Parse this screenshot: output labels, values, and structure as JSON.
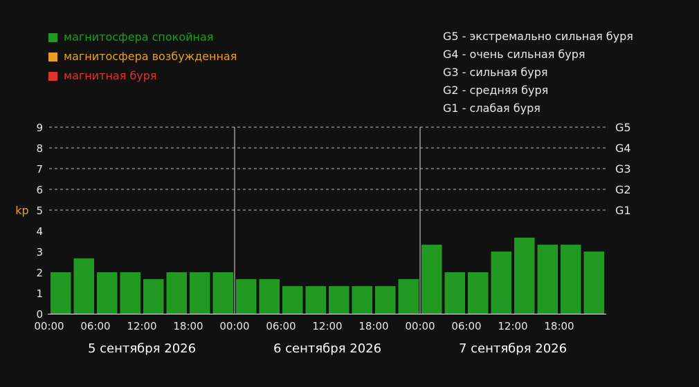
{
  "colors": {
    "background": "#111111",
    "quiet": "#229922",
    "excited": "#e6a024",
    "storm": "#dd3333",
    "text": "#e8e8e8",
    "kp_label": "#e6a024"
  },
  "legend": {
    "items": [
      {
        "label": "магнитосфера спокойная",
        "color": "#229922"
      },
      {
        "label": "магнитосфера возбужденная",
        "color": "#e6a024"
      },
      {
        "label": "магнитная буря",
        "color": "#dd3333"
      }
    ]
  },
  "storm_scale": {
    "items": [
      {
        "code": "G5",
        "desc": "экстремально сильная буря"
      },
      {
        "code": "G4",
        "desc": "очень сильная буря"
      },
      {
        "code": "G3",
        "desc": "сильная буря"
      },
      {
        "code": "G2",
        "desc": "средняя буря"
      },
      {
        "code": "G1",
        "desc": "слабая буря"
      }
    ]
  },
  "chart_data": {
    "type": "bar",
    "ylabel": "kp",
    "ylim": [
      0,
      9
    ],
    "yticks": [
      0,
      1,
      2,
      3,
      4,
      5,
      6,
      7,
      8,
      9
    ],
    "grid": "dashed horizontal lines at kp 5–9",
    "right_axis_labels": [
      {
        "kp": 9,
        "label": "G5"
      },
      {
        "kp": 8,
        "label": "G4"
      },
      {
        "kp": 7,
        "label": "G3"
      },
      {
        "kp": 6,
        "label": "G2"
      },
      {
        "kp": 5,
        "label": "G1"
      }
    ],
    "xtick_labels": [
      "00:00",
      "06:00",
      "12:00",
      "18:00"
    ],
    "days": [
      {
        "date": "5 сентября 2026",
        "values": [
          2.0,
          2.67,
          2.0,
          2.0,
          1.67,
          2.0,
          2.0,
          2.0
        ]
      },
      {
        "date": "6 сентября 2026",
        "values": [
          1.67,
          1.67,
          1.33,
          1.33,
          1.33,
          1.33,
          1.33,
          1.67
        ]
      },
      {
        "date": "7 сентября 2026",
        "values": [
          3.33,
          2.0,
          2.0,
          3.0,
          3.67,
          3.33,
          3.33,
          3.0
        ]
      }
    ],
    "bar_color": "#229922"
  }
}
